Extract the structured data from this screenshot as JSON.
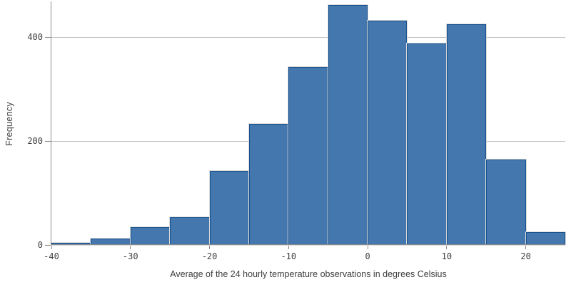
{
  "chart_data": {
    "type": "bar",
    "subtype": "histogram",
    "title": "",
    "xlabel": "Average of the 24 hourly temperature observations in degrees Celsius",
    "ylabel": "Frequency",
    "bin_edges": [
      -40,
      -35,
      -30,
      -25,
      -20,
      -15,
      -10,
      -5,
      0,
      5,
      10,
      15,
      20,
      25
    ],
    "frequencies": [
      4,
      12,
      34,
      54,
      143,
      233,
      343,
      461,
      431,
      387,
      425,
      165,
      25
    ],
    "x_ticks": [
      -40,
      -30,
      -20,
      -10,
      0,
      10,
      20
    ],
    "y_ticks": [
      0,
      200,
      400
    ],
    "y_gridlines": [
      200,
      400
    ],
    "xlim": [
      -40,
      25
    ],
    "ylim": [
      0,
      470
    ],
    "grid": "horizontal-only",
    "legend": "none",
    "colors": {
      "bar_fill": "#4477ad",
      "bar_border": "#17508d",
      "bar_outline": "#dcdcdc",
      "axis_line": "#8c8c8c",
      "gridline": "#bdbdbd",
      "label_text": "#404040",
      "background": "#ffffff"
    }
  }
}
